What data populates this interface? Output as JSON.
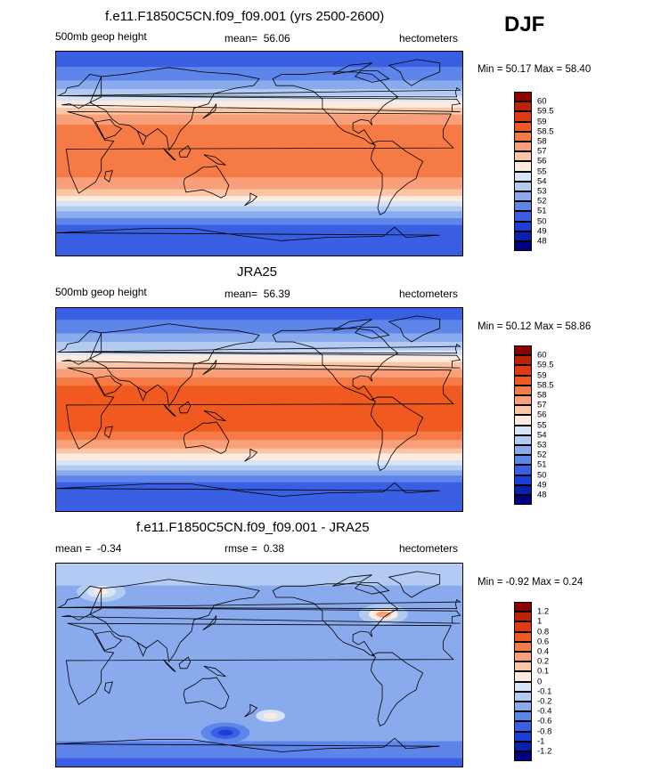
{
  "season": "DJF",
  "chart_data": [
    {
      "type": "heatmap",
      "title": "f.e11.F1850C5CN.f09_f09.001 (yrs 2500-2600)",
      "left_label": "500mb geop height",
      "mean_label": "mean=",
      "mean_value": "56.06",
      "units": "hectometers",
      "minmax_text": "Min =  50.17 Max =  58.40",
      "colorbar_labels": [
        "60",
        "59.5",
        "59",
        "58.5",
        "58",
        "57",
        "56",
        "55",
        "54",
        "53",
        "52",
        "51",
        "50",
        "49",
        "48"
      ],
      "colorbar_colors": [
        "#8b0000",
        "#c02008",
        "#e03a10",
        "#f05a20",
        "#f57a45",
        "#f9a07a",
        "#fbc6a6",
        "#fdebe0",
        "#d7e4f7",
        "#b3caf2",
        "#8aaaee",
        "#5e85ea",
        "#3a5fe3",
        "#1a3fd6",
        "#0a1fb0",
        "#000080"
      ],
      "lat_profile": [
        {
          "lat": 90,
          "v": 50.3
        },
        {
          "lat": 70,
          "v": 51.3
        },
        {
          "lat": 55,
          "v": 53.2
        },
        {
          "lat": 45,
          "v": 55.2
        },
        {
          "lat": 35,
          "v": 57.0
        },
        {
          "lat": 25,
          "v": 58.0
        },
        {
          "lat": 10,
          "v": 58.4
        },
        {
          "lat": 0,
          "v": 58.4
        },
        {
          "lat": -15,
          "v": 58.3
        },
        {
          "lat": -25,
          "v": 57.8
        },
        {
          "lat": -35,
          "v": 56.5
        },
        {
          "lat": -45,
          "v": 54.5
        },
        {
          "lat": -55,
          "v": 52.2
        },
        {
          "lat": -65,
          "v": 50.8
        },
        {
          "lat": -80,
          "v": 50.4
        },
        {
          "lat": -90,
          "v": 50.2
        }
      ]
    },
    {
      "type": "heatmap",
      "title": "JRA25",
      "left_label": "500mb geop height",
      "mean_label": "mean=",
      "mean_value": "56.39",
      "units": "hectometers",
      "minmax_text": "Min =  50.12 Max =  58.86",
      "colorbar_labels": [
        "60",
        "59.5",
        "59",
        "58.5",
        "58",
        "57",
        "56",
        "55",
        "54",
        "53",
        "52",
        "51",
        "50",
        "49",
        "48"
      ],
      "colorbar_colors": [
        "#8b0000",
        "#c02008",
        "#e03a10",
        "#f05a20",
        "#f57a45",
        "#f9a07a",
        "#fbc6a6",
        "#fdebe0",
        "#d7e4f7",
        "#b3caf2",
        "#8aaaee",
        "#5e85ea",
        "#3a5fe3",
        "#1a3fd6",
        "#0a1fb0",
        "#000080"
      ],
      "lat_profile": [
        {
          "lat": 90,
          "v": 50.4
        },
        {
          "lat": 70,
          "v": 51.6
        },
        {
          "lat": 55,
          "v": 53.6
        },
        {
          "lat": 45,
          "v": 55.5
        },
        {
          "lat": 35,
          "v": 57.3
        },
        {
          "lat": 25,
          "v": 58.4
        },
        {
          "lat": 10,
          "v": 58.8
        },
        {
          "lat": 0,
          "v": 58.8
        },
        {
          "lat": -15,
          "v": 58.7
        },
        {
          "lat": -25,
          "v": 58.2
        },
        {
          "lat": -35,
          "v": 56.9
        },
        {
          "lat": -45,
          "v": 54.9
        },
        {
          "lat": -55,
          "v": 52.6
        },
        {
          "lat": -65,
          "v": 51.0
        },
        {
          "lat": -80,
          "v": 50.4
        },
        {
          "lat": -90,
          "v": 50.1
        }
      ]
    },
    {
      "type": "heatmap",
      "title": "f.e11.F1850C5CN.f09_f09.001 - JRA25",
      "left_label": "mean =",
      "left_value": "-0.34",
      "mean_label": "rmse =",
      "mean_value": "0.38",
      "units": "hectometers",
      "minmax_text": "Min =  -0.92 Max =   0.24",
      "colorbar_labels": [
        "1.2",
        "1",
        "0.8",
        "0.6",
        "0.4",
        "0.2",
        "0.1",
        "0",
        "-0.1",
        "-0.2",
        "-0.4",
        "-0.6",
        "-0.8",
        "-1",
        "-1.2"
      ],
      "colorbar_colors": [
        "#8b0000",
        "#c02008",
        "#e03a10",
        "#f05a20",
        "#f57a45",
        "#f9a07a",
        "#fbc6a6",
        "#fdebe0",
        "#d7e4f7",
        "#b3caf2",
        "#8aaaee",
        "#5e85ea",
        "#3a5fe3",
        "#1a3fd6",
        "#0a1fb0",
        "#000080"
      ],
      "lat_profile": [
        {
          "lat": 90,
          "v": -0.1
        },
        {
          "lat": 70,
          "v": -0.2
        },
        {
          "lat": 55,
          "v": -0.3
        },
        {
          "lat": 40,
          "v": -0.35
        },
        {
          "lat": 25,
          "v": -0.4
        },
        {
          "lat": 10,
          "v": -0.35
        },
        {
          "lat": 0,
          "v": -0.35
        },
        {
          "lat": -15,
          "v": -0.3
        },
        {
          "lat": -30,
          "v": -0.35
        },
        {
          "lat": -45,
          "v": -0.4
        },
        {
          "lat": -60,
          "v": -0.3
        },
        {
          "lat": -75,
          "v": -0.5
        },
        {
          "lat": -90,
          "v": -0.7
        }
      ],
      "anomalies": [
        {
          "lon": 290,
          "lat": 45,
          "v": 0.24
        },
        {
          "lon": 190,
          "lat": -45,
          "v": 0.1
        },
        {
          "lon": 40,
          "lat": 65,
          "v": 0.05
        },
        {
          "lon": 150,
          "lat": -60,
          "v": -0.9
        }
      ]
    }
  ]
}
